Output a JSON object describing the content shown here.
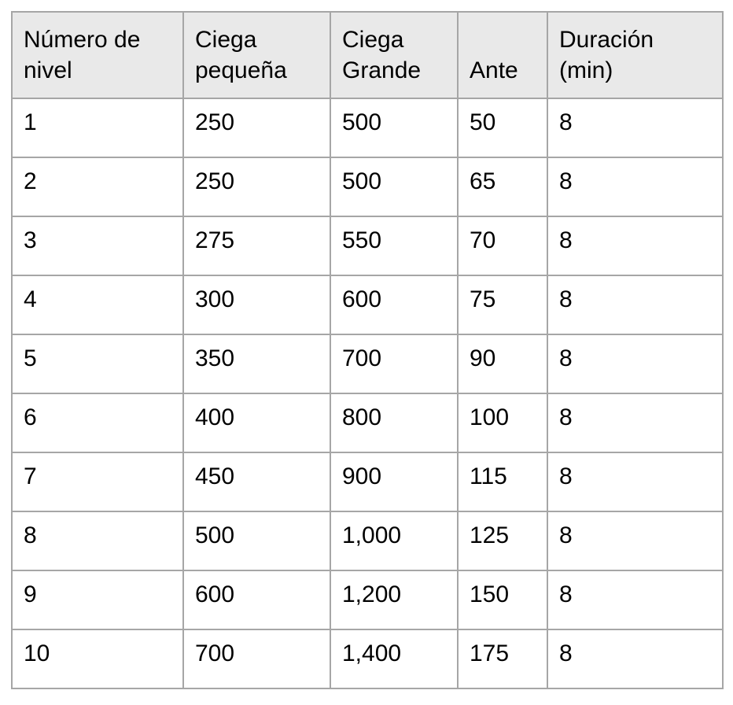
{
  "colors": {
    "page_background": "#ffffff",
    "header_background": "#e9e9e9",
    "grid_border": "#a6a6a6",
    "text": "#000000"
  },
  "chart_data": {
    "type": "table",
    "columns": [
      "Número de nivel",
      "Ciega pequeña",
      "Ciega Grande",
      "Ante",
      "Duración (min)"
    ],
    "rows": [
      [
        "1",
        "250",
        "500",
        "50",
        "8"
      ],
      [
        "2",
        "250",
        "500",
        "65",
        "8"
      ],
      [
        "3",
        "275",
        "550",
        "70",
        "8"
      ],
      [
        "4",
        "300",
        "600",
        "75",
        "8"
      ],
      [
        "5",
        "350",
        "700",
        "90",
        "8"
      ],
      [
        "6",
        "400",
        "800",
        "100",
        "8"
      ],
      [
        "7",
        "450",
        "900",
        "115",
        "8"
      ],
      [
        "8",
        "500",
        "1,000",
        "125",
        "8"
      ],
      [
        "9",
        "600",
        "1,200",
        "150",
        "8"
      ],
      [
        "10",
        "700",
        "1,400",
        "175",
        "8"
      ]
    ]
  }
}
